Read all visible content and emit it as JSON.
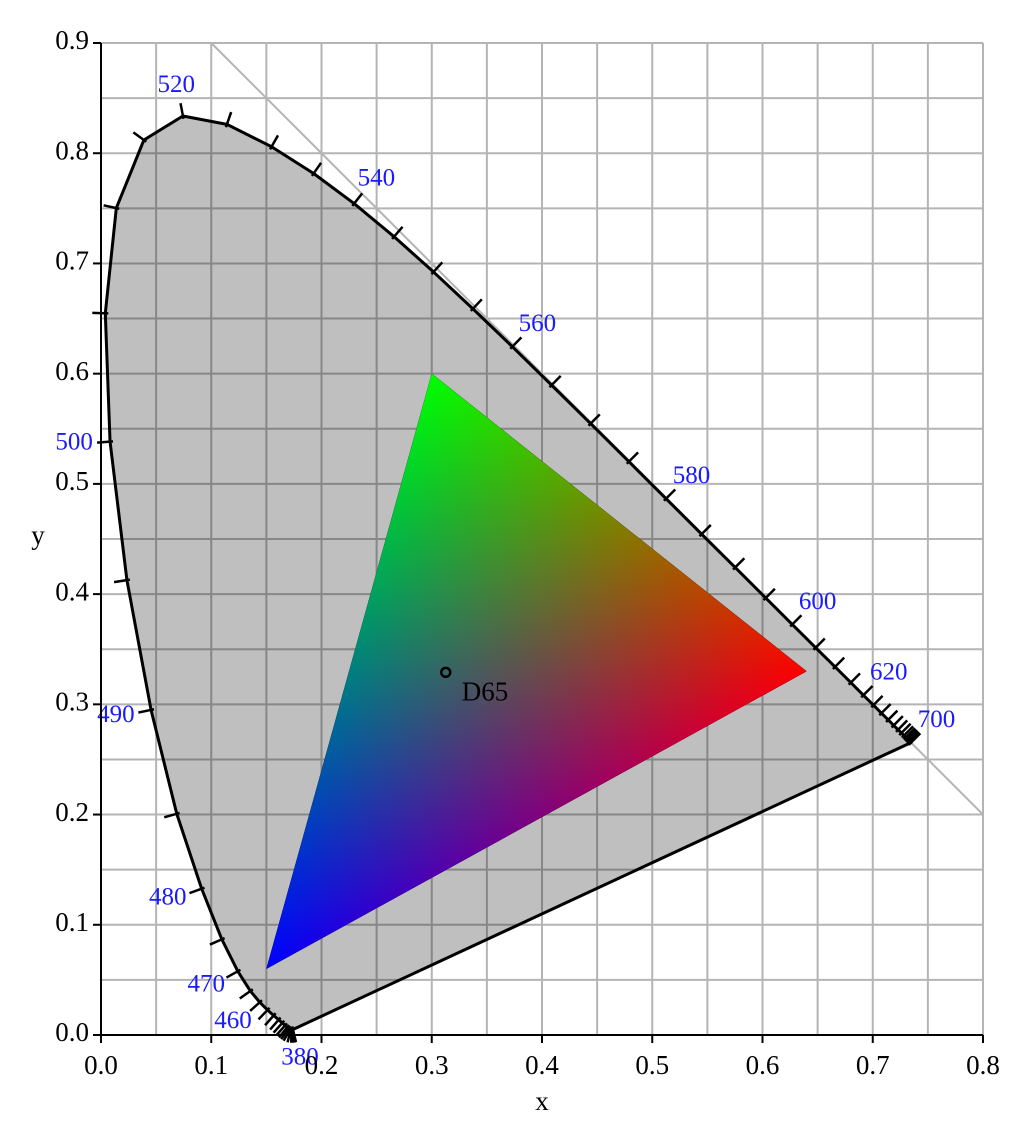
{
  "chart_data": {
    "type": "chromaticity",
    "xlabel": "x",
    "ylabel": "y",
    "xlim": [
      0,
      0.8
    ],
    "ylim": [
      0,
      0.9
    ],
    "xticks": [
      {
        "value": 0,
        "label": "0.0"
      },
      0.1,
      0.2,
      0.3,
      0.4,
      0.5,
      0.6,
      0.7,
      0.8
    ],
    "yticks": [
      {
        "value": 0,
        "label": "0.0"
      },
      0.1,
      0.2,
      0.3,
      0.4,
      0.5,
      0.6,
      0.7,
      0.8,
      0.9
    ],
    "xminorticks": [
      0.05,
      0.15,
      0.25,
      0.35,
      0.45,
      0.55,
      0.65,
      0.75
    ],
    "yminorticks": [
      0.05,
      0.15,
      0.25,
      0.35,
      0.45,
      0.55,
      0.65,
      0.75,
      0.85
    ],
    "grid": true,
    "reference_line": {
      "x": [
        0.1,
        0.8
      ],
      "y": [
        0.9,
        0.2
      ]
    },
    "locus": {
      "color": "#000000",
      "fill": "#c0c0c0",
      "label_color": "#1a1aff",
      "x": [
        0.1741,
        0.174,
        0.1738,
        0.1736,
        0.1733,
        0.173,
        0.1726,
        0.1721,
        0.1714,
        0.1703,
        0.1689,
        0.1669,
        0.1644,
        0.1611,
        0.1566,
        0.151,
        0.144,
        0.1355,
        0.1241,
        0.1096,
        0.0913,
        0.0687,
        0.0454,
        0.0235,
        0.0082,
        0.0039,
        0.0139,
        0.0389,
        0.0743,
        0.1142,
        0.1547,
        0.1929,
        0.2296,
        0.2658,
        0.3016,
        0.3373,
        0.3731,
        0.4087,
        0.4441,
        0.4788,
        0.5125,
        0.5448,
        0.5752,
        0.6029,
        0.627,
        0.6482,
        0.6658,
        0.6801,
        0.6915,
        0.7006,
        0.7079,
        0.714,
        0.719,
        0.723,
        0.726,
        0.7283,
        0.73,
        0.7311,
        0.732,
        0.7327,
        0.7334,
        0.734,
        0.7344,
        0.7346,
        0.7347
      ],
      "y": [
        0.005,
        0.005,
        0.0049,
        0.0049,
        0.0048,
        0.0048,
        0.0048,
        0.0048,
        0.0051,
        0.0058,
        0.0069,
        0.0086,
        0.0109,
        0.0138,
        0.0177,
        0.0227,
        0.0297,
        0.0399,
        0.0578,
        0.0868,
        0.1327,
        0.2007,
        0.295,
        0.4127,
        0.5384,
        0.6548,
        0.7502,
        0.812,
        0.8338,
        0.8262,
        0.8059,
        0.7816,
        0.7543,
        0.7243,
        0.6923,
        0.6589,
        0.6245,
        0.5896,
        0.5547,
        0.5202,
        0.4866,
        0.4544,
        0.4242,
        0.3965,
        0.3725,
        0.3514,
        0.334,
        0.3197,
        0.3083,
        0.2993,
        0.292,
        0.2859,
        0.2809,
        0.277,
        0.274,
        0.2717,
        0.27,
        0.2689,
        0.268,
        0.2673,
        0.2666,
        0.266,
        0.2656,
        0.2654,
        0.2653
      ],
      "wavelength_labels": [
        380,
        null,
        null,
        null,
        null,
        null,
        null,
        null,
        null,
        null,
        null,
        null,
        null,
        null,
        null,
        null,
        460,
        null,
        470,
        null,
        480,
        null,
        490,
        null,
        500,
        null,
        null,
        null,
        520,
        null,
        null,
        null,
        540,
        null,
        null,
        null,
        560,
        null,
        null,
        null,
        580,
        null,
        null,
        null,
        600,
        null,
        null,
        null,
        620,
        null,
        null,
        null,
        null,
        null,
        null,
        null,
        null,
        null,
        null,
        null,
        null,
        null,
        null,
        null,
        700
      ]
    },
    "gamut": {
      "x": [
        0.64,
        0.3,
        0.15
      ],
      "y": [
        0.33,
        0.6,
        0.06
      ],
      "colors": [
        "#ff0000",
        "#00ff00",
        "#0000ff"
      ]
    },
    "white_point": {
      "label": "D65",
      "x": 0.3127,
      "y": 0.329
    }
  }
}
